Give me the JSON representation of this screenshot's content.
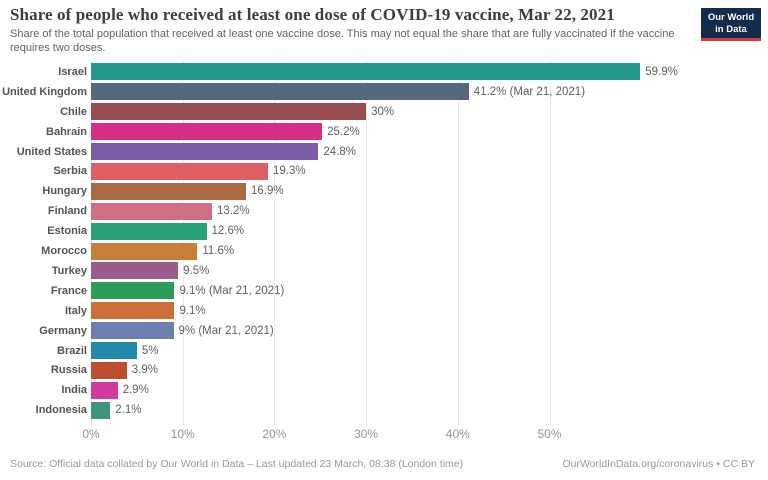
{
  "header": {
    "title": "Share of people who received at least one dose of COVID-19 vaccine, Mar 22, 2021",
    "subtitle": "Share of the total population that received at least one vaccine dose. This may not equal the share that are fully vaccinated if the vaccine requires two doses."
  },
  "logo": {
    "line1": "Our World",
    "line2": "in Data",
    "bg_color": "#122b4e",
    "accent_color": "#d73a34"
  },
  "chart_data": {
    "type": "bar",
    "orientation": "horizontal",
    "unit": "%",
    "grid": "dotted-vertical",
    "xlim": [
      0,
      60
    ],
    "categories": [
      "Israel",
      "United Kingdom",
      "Chile",
      "Bahrain",
      "United States",
      "Serbia",
      "Hungary",
      "Finland",
      "Estonia",
      "Morocco",
      "Turkey",
      "France",
      "Italy",
      "Germany",
      "Brazil",
      "Russia",
      "India",
      "Indonesia"
    ],
    "values": [
      59.9,
      41.2,
      30,
      25.2,
      24.8,
      19.3,
      16.9,
      13.2,
      12.6,
      11.6,
      9.5,
      9.1,
      9.1,
      9,
      5,
      3.9,
      2.9,
      2.1
    ],
    "value_labels": [
      "59.9%",
      "41.2% (Mar 21, 2021)",
      "30%",
      "25.2%",
      "24.8%",
      "19.3%",
      "16.9%",
      "13.2%",
      "12.6%",
      "11.6%",
      "9.5%",
      "9.1% (Mar 21, 2021)",
      "9.1%",
      "9% (Mar 21, 2021)",
      "5%",
      "3.9%",
      "2.9%",
      "2.1%"
    ],
    "colors": [
      "#239b8e",
      "#55687d",
      "#9a4e50",
      "#d42e87",
      "#7d5ca8",
      "#e05e66",
      "#a96a44",
      "#d06e85",
      "#27a077",
      "#c67f3b",
      "#9c5c8b",
      "#2d9c56",
      "#cf6d38",
      "#6c80b0",
      "#2389ad",
      "#bd4f2e",
      "#d43a9b",
      "#3e957f"
    ],
    "x_ticks": [
      {
        "value": 0,
        "label": "0%"
      },
      {
        "value": 10,
        "label": "10%"
      },
      {
        "value": 20,
        "label": "20%"
      },
      {
        "value": 30,
        "label": "30%"
      },
      {
        "value": 40,
        "label": "40%"
      },
      {
        "value": 50,
        "label": "50%"
      }
    ]
  },
  "footer": {
    "source": "Source: Official data collated by Our World in Data – Last updated 23 March, 08:38 (London time)",
    "link": "OurWorldInData.org/coronavirus • CC BY"
  }
}
